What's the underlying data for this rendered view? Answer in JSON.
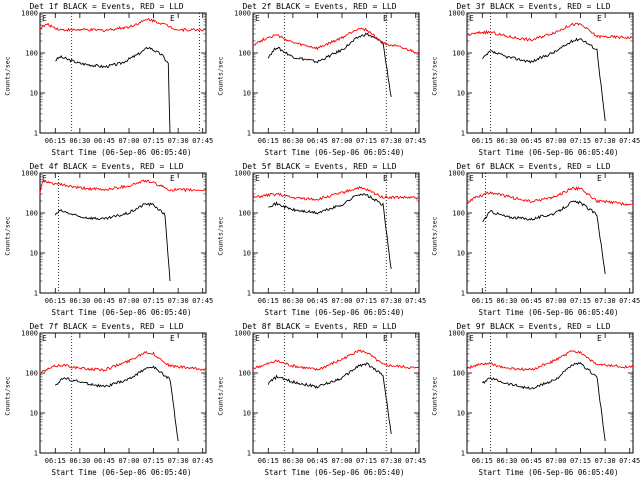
{
  "panel_titles": [
    "Det 1f BLACK = Events, RED = LLD",
    "Det 2f BLACK = Events, RED = LLD",
    "Det 3f BLACK = Events, RED = LLD",
    "Det 4f BLACK = Events, RED = LLD",
    "Det 5f BLACK = Events, RED = LLD",
    "Det 6f BLACK = Events, RED = LLD",
    "Det 7f BLACK = Events, RED = LLD",
    "Det 8f BLACK = Events, RED = LLD",
    "Det 9f BLACK = Events, RED = LLD"
  ],
  "xlabel": "Start Time (06-Sep-06 06:05:40)",
  "ylabel": "Counts/sec",
  "colors": {
    "events": "#000000",
    "lld": "#ff0000"
  },
  "chart_data": [
    {
      "type": "line",
      "title": "Det 1f BLACK = Events, RED = LLD",
      "xlabel": "Start Time (06-Sep-06 06:05:40)",
      "ylabel": "Counts/sec",
      "xlim": [
        "06:05:40",
        "07:47"
      ],
      "ylim": [
        1,
        1000
      ],
      "y_scale": "log",
      "x_ticks": [
        "06:15",
        "06:30",
        "06:45",
        "07:00",
        "07:15",
        "07:30",
        "07:45"
      ],
      "y_ticks": [
        "1",
        "10",
        "100",
        "1000"
      ],
      "corner_labels": [
        "E",
        "E"
      ],
      "dotted_markers": [
        "06:25",
        "07:43"
      ],
      "series": [
        {
          "name": "BLACK = Events",
          "x": [
            "06:15",
            "06:18",
            "06:30",
            "06:45",
            "06:55",
            "07:05",
            "07:12",
            "07:20",
            "07:24",
            "07:25"
          ],
          "y": [
            65,
            80,
            55,
            45,
            55,
            90,
            140,
            90,
            55,
            1
          ]
        },
        {
          "name": "RED = LLD",
          "x": [
            "06:05:40",
            "06:10",
            "06:18",
            "06:30",
            "06:45",
            "07:00",
            "07:12",
            "07:20",
            "07:30",
            "07:47"
          ],
          "y": [
            420,
            520,
            380,
            380,
            370,
            450,
            700,
            550,
            380,
            380
          ]
        }
      ]
    },
    {
      "type": "line",
      "title": "Det 2f BLACK = Events, RED = LLD",
      "xlabel": "Start Time (06-Sep-06 06:05:40)",
      "ylabel": "Counts/sec",
      "xlim": [
        "06:05:40",
        "07:47"
      ],
      "ylim": [
        1,
        1000
      ],
      "y_scale": "log",
      "x_ticks": [
        "06:15",
        "06:30",
        "06:45",
        "07:00",
        "07:15",
        "07:30",
        "07:45"
      ],
      "y_ticks": [
        "1",
        "10",
        "100",
        "1000"
      ],
      "corner_labels": [
        "E",
        "E"
      ],
      "dotted_markers": [
        "06:25",
        "07:27"
      ],
      "series": [
        {
          "name": "BLACK = Events",
          "x": [
            "06:15",
            "06:20",
            "06:30",
            "06:45",
            "07:00",
            "07:10",
            "07:15",
            "07:25",
            "07:30"
          ],
          "y": [
            80,
            140,
            80,
            60,
            120,
            250,
            300,
            180,
            8
          ]
        },
        {
          "name": "RED = LLD",
          "x": [
            "06:05:40",
            "06:15",
            "06:20",
            "06:30",
            "06:45",
            "07:00",
            "07:10",
            "07:15",
            "07:25",
            "07:47"
          ],
          "y": [
            160,
            250,
            280,
            180,
            130,
            240,
            420,
            380,
            180,
            100
          ]
        }
      ]
    },
    {
      "type": "line",
      "title": "Det 3f BLACK = Events, RED = LLD",
      "xlabel": "Start Time (06-Sep-06 06:05:40)",
      "ylabel": "Counts/sec",
      "xlim": [
        "06:05:40",
        "07:47"
      ],
      "ylim": [
        1,
        1000
      ],
      "y_scale": "log",
      "x_ticks": [
        "06:15",
        "06:30",
        "06:45",
        "07:00",
        "07:15",
        "07:30",
        "07:45"
      ],
      "y_ticks": [
        "1",
        "10",
        "100",
        "1000"
      ],
      "corner_labels": [
        "E",
        "E"
      ],
      "dotted_markers": [
        "06:20"
      ],
      "series": [
        {
          "name": "BLACK = Events",
          "x": [
            "06:15",
            "06:20",
            "06:30",
            "06:45",
            "07:00",
            "07:10",
            "07:15",
            "07:25",
            "07:30"
          ],
          "y": [
            70,
            110,
            80,
            60,
            110,
            200,
            230,
            120,
            2
          ]
        },
        {
          "name": "RED = LLD",
          "x": [
            "06:05:40",
            "06:15",
            "06:20",
            "06:30",
            "06:45",
            "07:00",
            "07:10",
            "07:15",
            "07:25",
            "07:47"
          ],
          "y": [
            280,
            330,
            330,
            260,
            210,
            340,
            520,
            520,
            260,
            240
          ]
        }
      ]
    },
    {
      "type": "line",
      "title": "Det 4f BLACK = Events, RED = LLD",
      "xlabel": "Start Time (06-Sep-06 06:05:40)",
      "ylabel": "Counts/sec",
      "xlim": [
        "06:05:40",
        "07:47"
      ],
      "ylim": [
        1,
        1000
      ],
      "y_scale": "log",
      "x_ticks": [
        "06:15",
        "06:30",
        "06:45",
        "07:00",
        "07:15",
        "07:30",
        "07:45"
      ],
      "y_ticks": [
        "1",
        "10",
        "100",
        "1000"
      ],
      "corner_labels": [
        "E",
        "E"
      ],
      "dotted_markers": [
        "06:17"
      ],
      "series": [
        {
          "name": "BLACK = Events",
          "x": [
            "06:15",
            "06:18",
            "06:30",
            "06:45",
            "07:00",
            "07:10",
            "07:15",
            "07:22",
            "07:25"
          ],
          "y": [
            90,
            115,
            80,
            70,
            100,
            170,
            160,
            90,
            2
          ]
        },
        {
          "name": "RED = LLD",
          "x": [
            "06:05:40",
            "06:07",
            "06:15",
            "06:30",
            "06:45",
            "07:00",
            "07:10",
            "07:15",
            "07:25",
            "07:47"
          ],
          "y": [
            300,
            600,
            540,
            420,
            380,
            480,
            650,
            560,
            380,
            370
          ]
        }
      ]
    },
    {
      "type": "line",
      "title": "Det 5f BLACK = Events, RED = LLD",
      "xlabel": "Start Time (06-Sep-06 06:05:40)",
      "ylabel": "Counts/sec",
      "xlim": [
        "06:05:40",
        "07:47"
      ],
      "ylim": [
        1,
        1000
      ],
      "y_scale": "log",
      "x_ticks": [
        "06:15",
        "06:30",
        "06:45",
        "07:00",
        "07:15",
        "07:30",
        "07:45"
      ],
      "y_ticks": [
        "1",
        "10",
        "100",
        "1000"
      ],
      "corner_labels": [
        "E",
        "E"
      ],
      "dotted_markers": [
        "06:25",
        "07:27"
      ],
      "series": [
        {
          "name": "BLACK = Events",
          "x": [
            "06:15",
            "06:20",
            "06:30",
            "06:45",
            "07:00",
            "07:10",
            "07:15",
            "07:25",
            "07:30"
          ],
          "y": [
            150,
            170,
            120,
            100,
            160,
            300,
            280,
            160,
            4
          ]
        },
        {
          "name": "RED = LLD",
          "x": [
            "06:05:40",
            "06:15",
            "06:20",
            "06:30",
            "06:45",
            "07:00",
            "07:10",
            "07:15",
            "07:25",
            "07:47"
          ],
          "y": [
            240,
            280,
            300,
            240,
            220,
            320,
            430,
            380,
            250,
            240
          ]
        }
      ]
    },
    {
      "type": "line",
      "title": "Det 6f BLACK = Events, RED = LLD",
      "xlabel": "Start Time (06-Sep-06 06:05:40)",
      "ylabel": "Counts/sec",
      "xlim": [
        "06:05:40",
        "07:47"
      ],
      "ylim": [
        1,
        1000
      ],
      "y_scale": "log",
      "x_ticks": [
        "06:15",
        "06:30",
        "06:45",
        "07:00",
        "07:15",
        "07:30",
        "07:45"
      ],
      "y_ticks": [
        "1",
        "10",
        "100",
        "1000"
      ],
      "corner_labels": [
        "E",
        "E"
      ],
      "dotted_markers": [
        "06:17"
      ],
      "series": [
        {
          "name": "BLACK = Events",
          "x": [
            "06:15",
            "06:20",
            "06:30",
            "06:45",
            "07:00",
            "07:10",
            "07:15",
            "07:25",
            "07:30"
          ],
          "y": [
            60,
            110,
            80,
            70,
            100,
            190,
            180,
            90,
            3
          ]
        },
        {
          "name": "RED = LLD",
          "x": [
            "06:05:40",
            "06:10",
            "06:20",
            "06:30",
            "06:45",
            "07:00",
            "07:10",
            "07:15",
            "07:25",
            "07:47"
          ],
          "y": [
            180,
            240,
            330,
            260,
            190,
            260,
            420,
            400,
            200,
            160
          ]
        }
      ]
    },
    {
      "type": "line",
      "title": "Det 7f BLACK = Events, RED = LLD",
      "xlabel": "Start Time (06-Sep-06 06:05:40)",
      "ylabel": "Counts/sec",
      "xlim": [
        "06:05:40",
        "07:47"
      ],
      "ylim": [
        1,
        1000
      ],
      "y_scale": "log",
      "x_ticks": [
        "06:15",
        "06:30",
        "06:45",
        "07:00",
        "07:15",
        "07:30",
        "07:45"
      ],
      "y_ticks": [
        "1",
        "10",
        "100",
        "1000"
      ],
      "corner_labels": [
        "E",
        "E"
      ],
      "dotted_markers": [
        "06:25"
      ],
      "series": [
        {
          "name": "BLACK = Events",
          "x": [
            "06:15",
            "06:20",
            "06:30",
            "06:45",
            "07:00",
            "07:10",
            "07:15",
            "07:25",
            "07:30"
          ],
          "y": [
            50,
            75,
            60,
            45,
            70,
            130,
            140,
            70,
            2
          ]
        },
        {
          "name": "RED = LLD",
          "x": [
            "06:05:40",
            "06:15",
            "06:20",
            "06:30",
            "06:45",
            "07:00",
            "07:10",
            "07:15",
            "07:25",
            "07:47"
          ],
          "y": [
            100,
            150,
            160,
            130,
            120,
            200,
            340,
            300,
            150,
            120
          ]
        }
      ]
    },
    {
      "type": "line",
      "title": "Det 8f BLACK = Events, RED = LLD",
      "xlabel": "Start Time (06-Sep-06 06:05:40)",
      "ylabel": "Counts/sec",
      "xlim": [
        "06:05:40",
        "07:47"
      ],
      "ylim": [
        1,
        1000
      ],
      "y_scale": "log",
      "x_ticks": [
        "06:15",
        "06:30",
        "06:45",
        "07:00",
        "07:15",
        "07:30",
        "07:45"
      ],
      "y_ticks": [
        "1",
        "10",
        "100",
        "1000"
      ],
      "corner_labels": [
        "E",
        "E"
      ],
      "dotted_markers": [
        "06:25",
        "07:27"
      ],
      "series": [
        {
          "name": "BLACK = Events",
          "x": [
            "06:15",
            "06:20",
            "06:30",
            "06:45",
            "07:00",
            "07:10",
            "07:15",
            "07:25",
            "07:30"
          ],
          "y": [
            55,
            80,
            60,
            45,
            75,
            150,
            170,
            90,
            3
          ]
        },
        {
          "name": "RED = LLD",
          "x": [
            "06:05:40",
            "06:15",
            "06:20",
            "06:30",
            "06:45",
            "07:00",
            "07:10",
            "07:15",
            "07:25",
            "07:47"
          ],
          "y": [
            130,
            170,
            200,
            150,
            120,
            220,
            360,
            330,
            160,
            130
          ]
        }
      ]
    },
    {
      "type": "line",
      "title": "Det 9f BLACK = Events, RED = LLD",
      "xlabel": "Start Time (06-Sep-06 06:05:40)",
      "ylabel": "Counts/sec",
      "xlim": [
        "06:05:40",
        "07:47"
      ],
      "ylim": [
        1,
        1000
      ],
      "y_scale": "log",
      "x_ticks": [
        "06:15",
        "06:30",
        "06:45",
        "07:00",
        "07:15",
        "07:30",
        "07:45"
      ],
      "y_ticks": [
        "1",
        "10",
        "100",
        "1000"
      ],
      "corner_labels": [
        "E",
        "E"
      ],
      "dotted_markers": [
        "06:20"
      ],
      "series": [
        {
          "name": "BLACK = Events",
          "x": [
            "06:15",
            "06:20",
            "06:30",
            "06:45",
            "07:00",
            "07:10",
            "07:15",
            "07:25",
            "07:30"
          ],
          "y": [
            55,
            75,
            55,
            40,
            70,
            160,
            170,
            80,
            2
          ]
        },
        {
          "name": "RED = LLD",
          "x": [
            "06:05:40",
            "06:15",
            "06:20",
            "06:30",
            "06:45",
            "07:00",
            "07:10",
            "07:15",
            "07:25",
            "07:47"
          ],
          "y": [
            130,
            170,
            170,
            130,
            120,
            210,
            360,
            330,
            160,
            140
          ]
        }
      ]
    }
  ]
}
